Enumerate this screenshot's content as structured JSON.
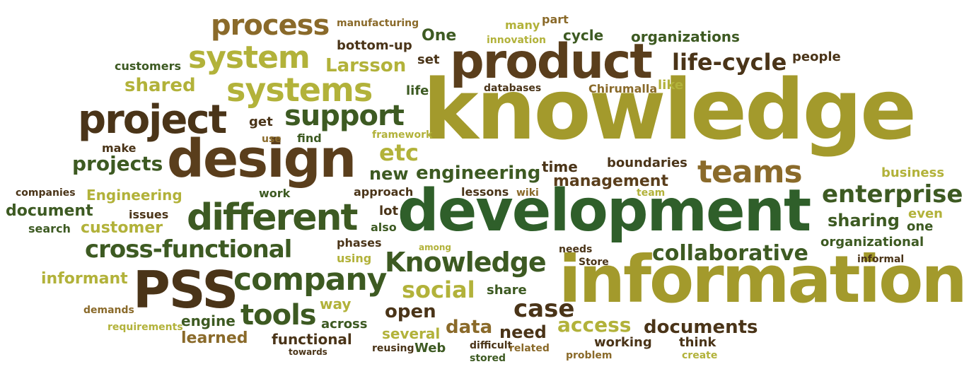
{
  "palette": {
    "olive": "#a39a2c",
    "lime": "#b2b23a",
    "dark_green": "#3d5a22",
    "forest": "#2f5f2a",
    "brown": "#5a3e1c",
    "tan": "#8a6a2a",
    "dark_brown": "#4a3418"
  },
  "words": [
    {
      "text": "knowledge",
      "color": "#a39a2c"
    },
    {
      "text": "development",
      "color": "#2f5f2a"
    },
    {
      "text": "information",
      "color": "#a39a2c"
    },
    {
      "text": "design",
      "color": "#5a3e1c"
    },
    {
      "text": "product",
      "color": "#5a3e1c"
    },
    {
      "text": "project",
      "color": "#4a3418"
    },
    {
      "text": "systems",
      "color": "#b2b23a"
    },
    {
      "text": "system",
      "color": "#b2b23a"
    },
    {
      "text": "process",
      "color": "#8a6a2a"
    },
    {
      "text": "support",
      "color": "#3d5a22"
    },
    {
      "text": "different",
      "color": "#3d5a22"
    },
    {
      "text": "teams",
      "color": "#8a6a2a"
    },
    {
      "text": "PSS",
      "color": "#4a3418"
    },
    {
      "text": "company",
      "color": "#3d5a22"
    },
    {
      "text": "Knowledge",
      "color": "#3d5a22"
    },
    {
      "text": "cross-functional",
      "color": "#3d5a22"
    },
    {
      "text": "enterprise",
      "color": "#3d5a22"
    },
    {
      "text": "life-cycle",
      "color": "#4a3418"
    },
    {
      "text": "collaborative",
      "color": "#3d5a22"
    },
    {
      "text": "engineering",
      "color": "#3d5a22"
    },
    {
      "text": "management",
      "color": "#5a3e1c"
    },
    {
      "text": "tools",
      "color": "#3d5a22"
    },
    {
      "text": "case",
      "color": "#4a3418"
    },
    {
      "text": "social",
      "color": "#b2b23a"
    },
    {
      "text": "access",
      "color": "#b2b23a"
    },
    {
      "text": "documents",
      "color": "#4a3418"
    },
    {
      "text": "data",
      "color": "#8a6a2a"
    },
    {
      "text": "open",
      "color": "#4a3418"
    },
    {
      "text": "need",
      "color": "#4a3418"
    },
    {
      "text": "etc",
      "color": "#b2b23a"
    },
    {
      "text": "Larsson",
      "color": "#b2b23a"
    },
    {
      "text": "projects",
      "color": "#3d5a22"
    },
    {
      "text": "shared",
      "color": "#b2b23a"
    },
    {
      "text": "sharing",
      "color": "#3d5a22"
    },
    {
      "text": "customer",
      "color": "#b2b23a"
    },
    {
      "text": "document",
      "color": "#3d5a22"
    },
    {
      "text": "Engineering",
      "color": "#b2b23a"
    },
    {
      "text": "informant",
      "color": "#b2b23a"
    },
    {
      "text": "One",
      "color": "#3d5a22"
    },
    {
      "text": "new",
      "color": "#3d5a22"
    },
    {
      "text": "several",
      "color": "#b2b23a"
    },
    {
      "text": "learned",
      "color": "#8a6a2a"
    },
    {
      "text": "engine",
      "color": "#3d5a22"
    },
    {
      "text": "functional",
      "color": "#4a3418"
    },
    {
      "text": "way",
      "color": "#b2b23a"
    },
    {
      "text": "time",
      "color": "#4a3418"
    },
    {
      "text": "boundaries",
      "color": "#4a3418"
    },
    {
      "text": "organizations",
      "color": "#3d5a22"
    },
    {
      "text": "people",
      "color": "#4a3418"
    },
    {
      "text": "cycle",
      "color": "#3d5a22"
    },
    {
      "text": "bottom-up",
      "color": "#4a3418"
    },
    {
      "text": "manufacturing",
      "color": "#8a6a2a"
    },
    {
      "text": "many",
      "color": "#b2b23a"
    },
    {
      "text": "part",
      "color": "#8a6a2a"
    },
    {
      "text": "innovation",
      "color": "#b2b23a"
    },
    {
      "text": "set",
      "color": "#4a3418"
    },
    {
      "text": "customers",
      "color": "#3d5a22"
    },
    {
      "text": "life",
      "color": "#3d5a22"
    },
    {
      "text": "databases",
      "color": "#4a3418"
    },
    {
      "text": "Chirumalla",
      "color": "#8a6a2a"
    },
    {
      "text": "like",
      "color": "#b2b23a"
    },
    {
      "text": "get",
      "color": "#4a3418"
    },
    {
      "text": "find",
      "color": "#3d5a22"
    },
    {
      "text": "use",
      "color": "#8a6a2a"
    },
    {
      "text": "make",
      "color": "#4a3418"
    },
    {
      "text": "framework",
      "color": "#b2b23a"
    },
    {
      "text": "companies",
      "color": "#4a3418"
    },
    {
      "text": "work",
      "color": "#3d5a22"
    },
    {
      "text": "approach",
      "color": "#4a3418"
    },
    {
      "text": "lessons",
      "color": "#4a3418"
    },
    {
      "text": "wiki",
      "color": "#8a6a2a"
    },
    {
      "text": "team",
      "color": "#b2b23a"
    },
    {
      "text": "business",
      "color": "#b2b23a"
    },
    {
      "text": "issues",
      "color": "#4a3418"
    },
    {
      "text": "lot",
      "color": "#4a3418"
    },
    {
      "text": "also",
      "color": "#3d5a22"
    },
    {
      "text": "search",
      "color": "#3d5a22"
    },
    {
      "text": "even",
      "color": "#b2b23a"
    },
    {
      "text": "one",
      "color": "#3d5a22"
    },
    {
      "text": "organizational",
      "color": "#3d5a22"
    },
    {
      "text": "phases",
      "color": "#4a3418"
    },
    {
      "text": "using",
      "color": "#b2b23a"
    },
    {
      "text": "among",
      "color": "#b2b23a"
    },
    {
      "text": "needs",
      "color": "#4a3418"
    },
    {
      "text": "Store",
      "color": "#4a3418"
    },
    {
      "text": "informal",
      "color": "#4a3418"
    },
    {
      "text": "share",
      "color": "#3d5a22"
    },
    {
      "text": "demands",
      "color": "#8a6a2a"
    },
    {
      "text": "requirements",
      "color": "#b2b23a"
    },
    {
      "text": "across",
      "color": "#3d5a22"
    },
    {
      "text": "towards",
      "color": "#4a3418"
    },
    {
      "text": "reusing",
      "color": "#4a3418"
    },
    {
      "text": "Web",
      "color": "#3d5a22"
    },
    {
      "text": "difficult",
      "color": "#4a3418"
    },
    {
      "text": "related",
      "color": "#8a6a2a"
    },
    {
      "text": "stored",
      "color": "#3d5a22"
    },
    {
      "text": "problem",
      "color": "#8a6a2a"
    },
    {
      "text": "working",
      "color": "#4a3418"
    },
    {
      "text": "think",
      "color": "#4a3418"
    },
    {
      "text": "create",
      "color": "#b2b23a"
    }
  ]
}
